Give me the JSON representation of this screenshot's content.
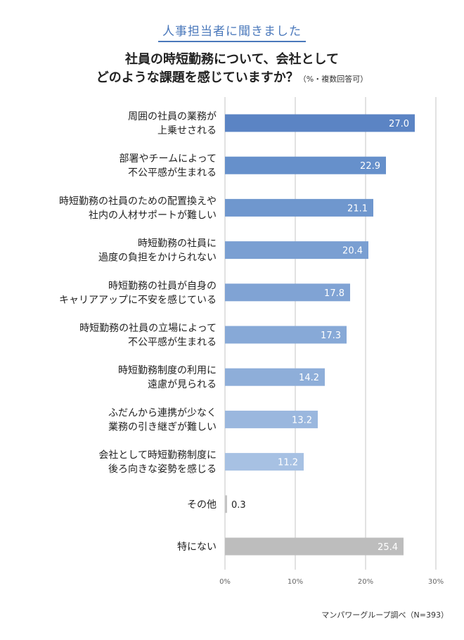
{
  "header": {
    "tag": "人事担当者に聞きました"
  },
  "title": {
    "line1": "社員の時短勤務について、会社として",
    "line2": "どのような課題を感じていますか？",
    "note": "（%・複数回答可）"
  },
  "source": "マンパワーグループ調べ（N=393）",
  "colors": {
    "bars": [
      "#5b84c4",
      "#6690cb",
      "#6f97ce",
      "#7a9fd2",
      "#80a3d4",
      "#87a9d7",
      "#8eaed9",
      "#9ab7de",
      "#a7c1e3",
      "#c4c4c4",
      "#bdbdbd"
    ],
    "grid": "#d9d9d9"
  },
  "chart_data": {
    "type": "bar",
    "orientation": "horizontal",
    "categories": [
      [
        "周囲の社員の業務が",
        "上乗せされる"
      ],
      [
        "部署やチームによって",
        "不公平感が生まれる"
      ],
      [
        "時短勤務の社員のための配置換えや",
        "社内の人材サポートが難しい"
      ],
      [
        "時短勤務の社員に",
        "過度の負担をかけられない"
      ],
      [
        "時短勤務の社員が自身の",
        "キャリアアップに不安を感じている"
      ],
      [
        "時短勤務の社員の立場によって",
        "不公平感が生まれる"
      ],
      [
        "時短勤務制度の利用に",
        "遠慮が見られる"
      ],
      [
        "ふだんから連携が少なく",
        "業務の引き継ぎが難しい"
      ],
      [
        "会社として時短勤務制度に",
        "後ろ向きな姿勢を感じる"
      ],
      [
        "その他"
      ],
      [
        "特にない"
      ]
    ],
    "values": [
      27.0,
      22.9,
      21.1,
      20.4,
      17.8,
      17.3,
      14.2,
      13.2,
      11.2,
      0.3,
      25.4
    ],
    "value_labels": [
      "27.0",
      "22.9",
      "21.1",
      "20.4",
      "17.8",
      "17.3",
      "14.2",
      "13.2",
      "11.2",
      "0.3",
      "25.4"
    ],
    "xlim": [
      0,
      30
    ],
    "ticks": [
      0,
      10,
      20,
      30
    ],
    "tick_labels": [
      "0%",
      "10%",
      "20%",
      "30%"
    ],
    "grid": true
  }
}
